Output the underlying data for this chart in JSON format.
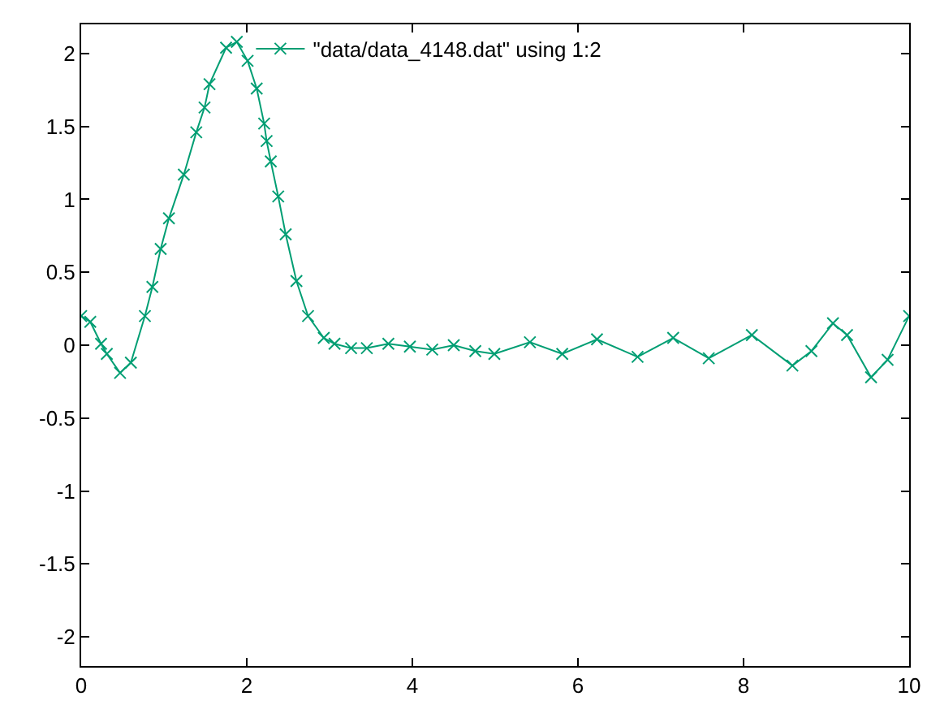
{
  "chart_data": {
    "type": "line",
    "x": [
      0,
      0.11,
      0.24,
      0.31,
      0.47,
      0.6,
      0.77,
      0.86,
      0.96,
      1.06,
      1.24,
      1.39,
      1.49,
      1.55,
      1.75,
      1.88,
      2.01,
      2.12,
      2.21,
      2.24,
      2.29,
      2.38,
      2.47,
      2.6,
      2.74,
      2.93,
      3.06,
      3.26,
      3.45,
      3.71,
      3.97,
      4.24,
      4.5,
      4.76,
      4.99,
      5.42,
      5.81,
      6.23,
      6.72,
      7.15,
      7.58,
      8.1,
      8.59,
      8.82,
      9.08,
      9.25,
      9.54,
      9.74,
      10
    ],
    "series": [
      {
        "name": "\"data/data_4148.dat\" using 1:2",
        "color": "#009e73",
        "values": [
          0.2,
          0.16,
          0.01,
          -0.06,
          -0.19,
          -0.12,
          0.2,
          0.4,
          0.66,
          0.87,
          1.17,
          1.46,
          1.63,
          1.79,
          2.04,
          2.08,
          1.95,
          1.76,
          1.52,
          1.4,
          1.26,
          1.02,
          0.76,
          0.44,
          0.2,
          0.05,
          0.01,
          -0.02,
          -0.02,
          0.01,
          -0.01,
          -0.03,
          0,
          -0.04,
          -0.06,
          0.02,
          -0.06,
          0.04,
          -0.08,
          0.05,
          -0.09,
          0.07,
          -0.14,
          -0.04,
          0.15,
          0.07,
          -0.22,
          -0.1,
          0.2
        ]
      }
    ],
    "xlim": [
      0,
      10
    ],
    "xticks": [
      0,
      2,
      4,
      6,
      8,
      10
    ],
    "ylim": [
      -2.2,
      2.2
    ],
    "yticks": [
      -2,
      -1.5,
      -1,
      -0.5,
      0,
      0.5,
      1,
      1.5,
      2
    ],
    "grid": false,
    "legend": "top",
    "marker": "cross",
    "line_style": "solid"
  }
}
